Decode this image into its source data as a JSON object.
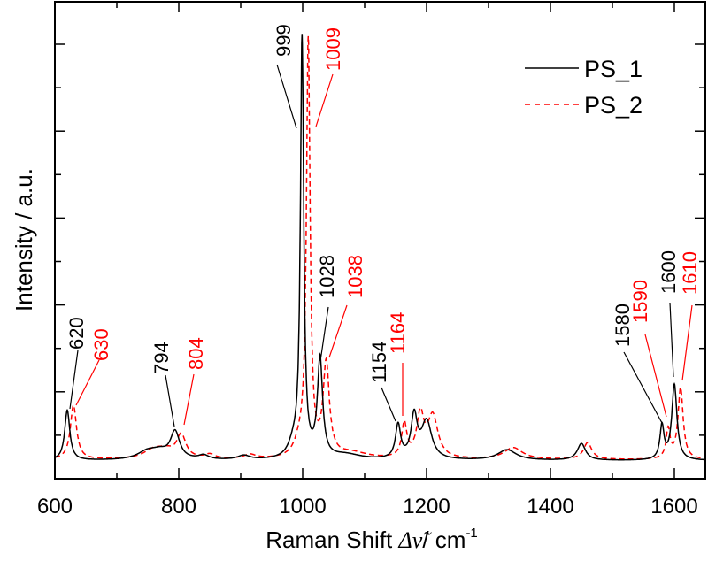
{
  "chart_data": {
    "type": "line",
    "title": "",
    "xlabel": "Raman Shift Δν̃ / cm-1",
    "xlabel_parts": {
      "prefix": "Raman Shift ",
      "symbol": "Δν̃",
      "suffix": "/ cm",
      "superscript": "-1"
    },
    "ylabel": "Intensity / a.u.",
    "xlim": [
      600,
      1650
    ],
    "ylim": [
      0,
      1.05
    ],
    "x_ticks": [
      600,
      800,
      1000,
      1200,
      1400,
      1600
    ],
    "x_tick_labels": [
      "600",
      "800",
      "1000",
      "1200",
      "1400",
      "1600"
    ],
    "y_tick_labels_shown": false,
    "grid": false,
    "legend_position": "top-right",
    "series": [
      {
        "name": "PS_1",
        "color": "#000000",
        "style": "solid",
        "peaks": [
          {
            "x": 620,
            "height": 0.12,
            "width": 5
          },
          {
            "x": 750,
            "height": 0.02,
            "width": 20
          },
          {
            "x": 770,
            "height": 0.015,
            "width": 15
          },
          {
            "x": 794,
            "height": 0.065,
            "width": 9
          },
          {
            "x": 840,
            "height": 0.01,
            "width": 10
          },
          {
            "x": 905,
            "height": 0.01,
            "width": 12
          },
          {
            "x": 985,
            "height": 0.03,
            "width": 10
          },
          {
            "x": 999,
            "height": 1.0,
            "width": 3.2
          },
          {
            "x": 1028,
            "height": 0.235,
            "width": 5
          },
          {
            "x": 1070,
            "height": 0.012,
            "width": 30
          },
          {
            "x": 1154,
            "height": 0.08,
            "width": 5
          },
          {
            "x": 1180,
            "height": 0.1,
            "width": 6
          },
          {
            "x": 1200,
            "height": 0.09,
            "width": 10
          },
          {
            "x": 1330,
            "height": 0.025,
            "width": 18
          },
          {
            "x": 1450,
            "height": 0.04,
            "width": 8
          },
          {
            "x": 1580,
            "height": 0.08,
            "width": 4
          },
          {
            "x": 1600,
            "height": 0.18,
            "width": 5
          }
        ],
        "baseline": 0.005
      },
      {
        "name": "PS_2",
        "color": "#ff0000",
        "style": "dashed",
        "peaks": [
          {
            "x": 630,
            "height": 0.13,
            "width": 6
          },
          {
            "x": 760,
            "height": 0.022,
            "width": 20
          },
          {
            "x": 780,
            "height": 0.015,
            "width": 15
          },
          {
            "x": 804,
            "height": 0.055,
            "width": 9
          },
          {
            "x": 850,
            "height": 0.01,
            "width": 10
          },
          {
            "x": 915,
            "height": 0.01,
            "width": 12
          },
          {
            "x": 995,
            "height": 0.03,
            "width": 10
          },
          {
            "x": 1009,
            "height": 0.99,
            "width": 3.6
          },
          {
            "x": 1038,
            "height": 0.22,
            "width": 6
          },
          {
            "x": 1080,
            "height": 0.014,
            "width": 30
          },
          {
            "x": 1164,
            "height": 0.08,
            "width": 5
          },
          {
            "x": 1190,
            "height": 0.1,
            "width": 7
          },
          {
            "x": 1210,
            "height": 0.1,
            "width": 10
          },
          {
            "x": 1340,
            "height": 0.028,
            "width": 18
          },
          {
            "x": 1460,
            "height": 0.04,
            "width": 8
          },
          {
            "x": 1590,
            "height": 0.07,
            "width": 4
          },
          {
            "x": 1610,
            "height": 0.17,
            "width": 5
          }
        ],
        "baseline": 0.007
      }
    ],
    "annotations": [
      {
        "text": "620",
        "series": "PS_1",
        "peak_x": 620,
        "color": "#000000"
      },
      {
        "text": "630",
        "series": "PS_2",
        "peak_x": 630,
        "color": "#ff0000"
      },
      {
        "text": "794",
        "series": "PS_1",
        "peak_x": 794,
        "color": "#000000"
      },
      {
        "text": "804",
        "series": "PS_2",
        "peak_x": 804,
        "color": "#ff0000"
      },
      {
        "text": "999",
        "series": "PS_1",
        "peak_x": 999,
        "color": "#000000"
      },
      {
        "text": "1009",
        "series": "PS_2",
        "peak_x": 1009,
        "color": "#ff0000"
      },
      {
        "text": "1028",
        "series": "PS_1",
        "peak_x": 1028,
        "color": "#000000"
      },
      {
        "text": "1038",
        "series": "PS_2",
        "peak_x": 1038,
        "color": "#ff0000"
      },
      {
        "text": "1154",
        "series": "PS_1",
        "peak_x": 1154,
        "color": "#000000"
      },
      {
        "text": "1164",
        "series": "PS_2",
        "peak_x": 1164,
        "color": "#ff0000"
      },
      {
        "text": "1580",
        "series": "PS_1",
        "peak_x": 1580,
        "color": "#000000"
      },
      {
        "text": "1590",
        "series": "PS_2",
        "peak_x": 1590,
        "color": "#ff0000"
      },
      {
        "text": "1600",
        "series": "PS_1",
        "peak_x": 1600,
        "color": "#000000"
      },
      {
        "text": "1610",
        "series": "PS_2",
        "peak_x": 1610,
        "color": "#ff0000"
      }
    ]
  }
}
